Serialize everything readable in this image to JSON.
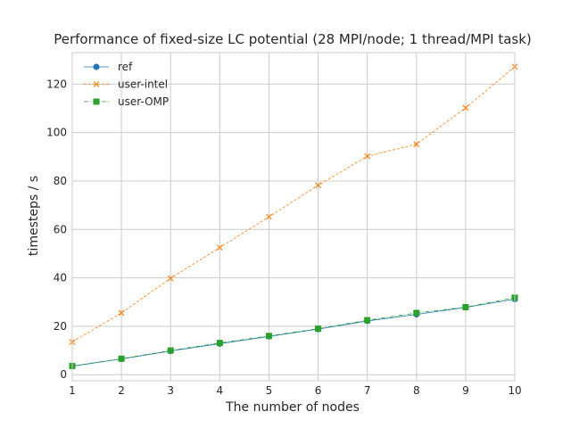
{
  "chart_data": {
    "type": "line",
    "title": "Performance of fixed-size LC potential (28 MPI/node; 1 thread/MPI task)",
    "xlabel": "The number of nodes",
    "ylabel": "timesteps / s",
    "xlim": [
      1,
      10
    ],
    "ylim": [
      -2.5,
      133
    ],
    "xticks": [
      1,
      2,
      3,
      4,
      5,
      6,
      7,
      8,
      9,
      10
    ],
    "yticks": [
      0,
      20,
      40,
      60,
      80,
      100,
      120
    ],
    "grid": true,
    "legend": "top-left",
    "x": [
      1,
      2,
      3,
      4,
      5,
      6,
      7,
      8,
      9,
      10
    ],
    "series": [
      {
        "name": "ref",
        "marker": "circle",
        "color": "#1f77b4",
        "dash": "solid",
        "values": [
          3.5,
          6.5,
          9.8,
          12.8,
          15.8,
          18.8,
          22.2,
          24.9,
          27.8,
          31.2
        ]
      },
      {
        "name": "user-intel",
        "marker": "x",
        "color": "#ff7f0e",
        "dash": "dashed",
        "values": [
          13.5,
          25.5,
          39.8,
          52.5,
          65.2,
          78.2,
          90.2,
          95.2,
          110.2,
          127.2
        ]
      },
      {
        "name": "user-OMP",
        "marker": "square",
        "color": "#2ca02c",
        "dash": "dashdot",
        "values": [
          3.6,
          6.6,
          10.0,
          13.1,
          16.0,
          19.0,
          22.5,
          25.5,
          27.9,
          31.8
        ]
      }
    ]
  }
}
